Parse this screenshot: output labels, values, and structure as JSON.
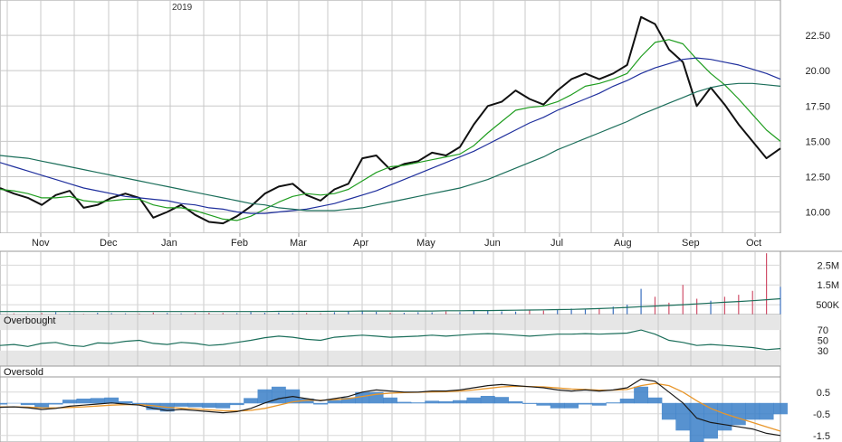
{
  "chart_data": {
    "type": "line",
    "year_label": "2019",
    "x_labels": [
      "Nov",
      "Dec",
      "Jan",
      "Feb",
      "Mar",
      "Apr",
      "May",
      "Jun",
      "Jul",
      "Aug",
      "Sep",
      "Oct"
    ],
    "price": {
      "ylim": [
        8.5,
        25.0
      ],
      "y_ticks": [
        "10.00",
        "12.50",
        "15.00",
        "17.50",
        "20.00",
        "22.50"
      ],
      "y_tick_values": [
        10.0,
        12.5,
        15.0,
        17.5,
        20.0,
        22.5
      ],
      "series": [
        {
          "values": [
            11.7,
            11.3,
            11.0,
            10.5,
            11.2,
            11.5,
            10.3,
            10.5,
            11.0,
            11.3,
            11.0,
            9.6,
            10.0,
            10.5,
            9.8,
            9.3,
            9.2,
            9.7,
            10.4,
            11.3,
            11.8,
            12.0,
            11.2,
            10.8,
            11.6,
            12.0,
            13.8,
            14.0,
            13.0,
            13.4,
            13.6,
            14.2,
            14.0,
            14.6,
            16.2,
            17.5,
            17.8,
            18.6,
            18.0,
            17.6,
            18.6,
            19.4,
            19.8,
            19.4,
            19.8,
            20.4,
            23.8,
            23.3,
            21.5,
            20.6,
            17.5,
            18.8,
            17.6,
            16.2,
            15.0,
            13.8,
            14.5
          ],
          "color": "#111111"
        },
        {
          "values": [
            11.6,
            11.5,
            11.3,
            11.0,
            11.0,
            11.1,
            10.8,
            10.7,
            10.8,
            10.9,
            10.9,
            10.5,
            10.3,
            10.3,
            10.1,
            9.8,
            9.5,
            9.4,
            9.7,
            10.2,
            10.7,
            11.1,
            11.3,
            11.2,
            11.3,
            11.6,
            12.2,
            12.8,
            13.2,
            13.3,
            13.5,
            13.7,
            13.9,
            14.1,
            14.7,
            15.6,
            16.4,
            17.2,
            17.4,
            17.5,
            17.8,
            18.3,
            18.9,
            19.1,
            19.4,
            19.8,
            21.0,
            22.0,
            22.2,
            21.9,
            20.8,
            19.8,
            19.0,
            18.0,
            16.9,
            15.8,
            15.0
          ],
          "color": "#1f9d1f"
        },
        {
          "values": [
            13.5,
            13.2,
            12.9,
            12.6,
            12.3,
            12.0,
            11.7,
            11.5,
            11.3,
            11.1,
            11.0,
            10.9,
            10.8,
            10.6,
            10.5,
            10.3,
            10.2,
            10.0,
            9.9,
            9.9,
            10.0,
            10.1,
            10.2,
            10.4,
            10.6,
            10.9,
            11.2,
            11.5,
            11.9,
            12.3,
            12.7,
            13.1,
            13.5,
            13.9,
            14.3,
            14.8,
            15.3,
            15.8,
            16.3,
            16.7,
            17.2,
            17.6,
            18.0,
            18.4,
            18.9,
            19.3,
            19.8,
            20.2,
            20.5,
            20.8,
            20.9,
            20.8,
            20.6,
            20.4,
            20.1,
            19.8,
            19.4
          ],
          "color": "#1f2f9d"
        },
        {
          "values": [
            14.0,
            13.9,
            13.8,
            13.6,
            13.4,
            13.2,
            13.0,
            12.8,
            12.6,
            12.4,
            12.2,
            12.0,
            11.8,
            11.6,
            11.4,
            11.2,
            11.0,
            10.8,
            10.6,
            10.5,
            10.3,
            10.2,
            10.1,
            10.1,
            10.1,
            10.2,
            10.3,
            10.5,
            10.7,
            10.9,
            11.1,
            11.3,
            11.5,
            11.7,
            12.0,
            12.3,
            12.7,
            13.1,
            13.5,
            13.9,
            14.4,
            14.8,
            15.2,
            15.6,
            16.0,
            16.4,
            16.9,
            17.3,
            17.7,
            18.1,
            18.5,
            18.8,
            19.0,
            19.1,
            19.1,
            19.0,
            18.9
          ],
          "color": "#1b6e5a"
        }
      ]
    },
    "volume": {
      "ylim": [
        0,
        3200000
      ],
      "y_ticks": [
        "2.5M",
        "1.5M",
        "500K"
      ],
      "y_tick_values": [
        2500000,
        1500000,
        500000
      ],
      "values": [
        50000,
        60000,
        40000,
        80000,
        120000,
        60000,
        40000,
        90000,
        70000,
        60000,
        50000,
        100000,
        80000,
        60000,
        70000,
        90000,
        80000,
        70000,
        120000,
        90000,
        100000,
        70000,
        80000,
        60000,
        120000,
        150000,
        200000,
        140000,
        100000,
        90000,
        120000,
        110000,
        160000,
        120000,
        200000,
        180000,
        160000,
        150000,
        220000,
        200000,
        250000,
        300000,
        250000,
        300000,
        400000,
        500000,
        1300000,
        900000,
        600000,
        1500000,
        800000,
        700000,
        900000,
        1000000,
        1200000,
        3100000,
        1400000
      ],
      "average": [
        150000,
        150000,
        150000,
        150000,
        150000,
        150000,
        150000,
        150000,
        150000,
        150000,
        150000,
        150000,
        150000,
        150000,
        150000,
        150000,
        150000,
        150000,
        150000,
        150000,
        160000,
        160000,
        160000,
        160000,
        170000,
        170000,
        180000,
        180000,
        180000,
        180000,
        180000,
        180000,
        190000,
        190000,
        200000,
        200000,
        210000,
        220000,
        230000,
        240000,
        250000,
        260000,
        280000,
        300000,
        330000,
        360000,
        400000,
        430000,
        460000,
        500000,
        540000,
        580000,
        620000,
        660000,
        700000,
        750000,
        800000
      ],
      "colors": {
        "up": "#3a6fbf",
        "down": "#d0506a",
        "average": "#1b6e5a"
      }
    },
    "rsi": {
      "ylim": [
        0,
        100
      ],
      "y_ticks": [
        "70",
        "50",
        "30"
      ],
      "y_tick_values": [
        70,
        50,
        30
      ],
      "overbought_label": "Overbought",
      "oversold_label": "Oversold",
      "overbought_level": 70,
      "oversold_level": 30,
      "values": [
        40,
        42,
        38,
        44,
        46,
        40,
        38,
        45,
        44,
        48,
        50,
        44,
        42,
        46,
        44,
        40,
        42,
        46,
        50,
        55,
        58,
        56,
        52,
        50,
        56,
        58,
        60,
        58,
        56,
        57,
        58,
        60,
        58,
        60,
        62,
        63,
        62,
        60,
        58,
        60,
        62,
        62,
        63,
        62,
        63,
        64,
        70,
        62,
        50,
        46,
        40,
        42,
        40,
        38,
        36,
        32,
        34
      ],
      "color": "#1b6e5a"
    },
    "macd": {
      "ylim": [
        -1.8,
        1.2
      ],
      "y_ticks": [
        "0.5",
        "-0.5",
        "-1.5"
      ],
      "y_tick_values": [
        0.5,
        -0.5,
        -1.5
      ],
      "macd": [
        -0.2,
        -0.18,
        -0.22,
        -0.3,
        -0.25,
        -0.15,
        -0.1,
        -0.05,
        0.0,
        -0.05,
        -0.1,
        -0.25,
        -0.35,
        -0.3,
        -0.35,
        -0.4,
        -0.45,
        -0.4,
        -0.25,
        0.0,
        0.2,
        0.3,
        0.2,
        0.1,
        0.2,
        0.3,
        0.5,
        0.6,
        0.55,
        0.5,
        0.5,
        0.55,
        0.55,
        0.6,
        0.7,
        0.8,
        0.85,
        0.8,
        0.75,
        0.7,
        0.6,
        0.55,
        0.6,
        0.55,
        0.6,
        0.7,
        1.1,
        1.0,
        0.5,
        0.0,
        -0.7,
        -0.9,
        -1.0,
        -1.1,
        -1.2,
        -1.4,
        -1.5
      ],
      "signal": [
        -0.18,
        -0.18,
        -0.19,
        -0.22,
        -0.23,
        -0.21,
        -0.18,
        -0.14,
        -0.1,
        -0.08,
        -0.08,
        -0.13,
        -0.2,
        -0.24,
        -0.28,
        -0.32,
        -0.36,
        -0.37,
        -0.34,
        -0.25,
        -0.1,
        0.05,
        0.12,
        0.12,
        0.15,
        0.2,
        0.3,
        0.4,
        0.45,
        0.48,
        0.49,
        0.51,
        0.52,
        0.55,
        0.6,
        0.67,
        0.74,
        0.77,
        0.76,
        0.74,
        0.69,
        0.64,
        0.62,
        0.59,
        0.59,
        0.62,
        0.8,
        0.9,
        0.8,
        0.5,
        0.1,
        -0.25,
        -0.5,
        -0.7,
        -0.9,
        -1.1,
        -1.3
      ],
      "colors": {
        "macd": "#1a1a1a",
        "signal": "#e8962a",
        "histogram": "#3a7fc8"
      }
    }
  }
}
